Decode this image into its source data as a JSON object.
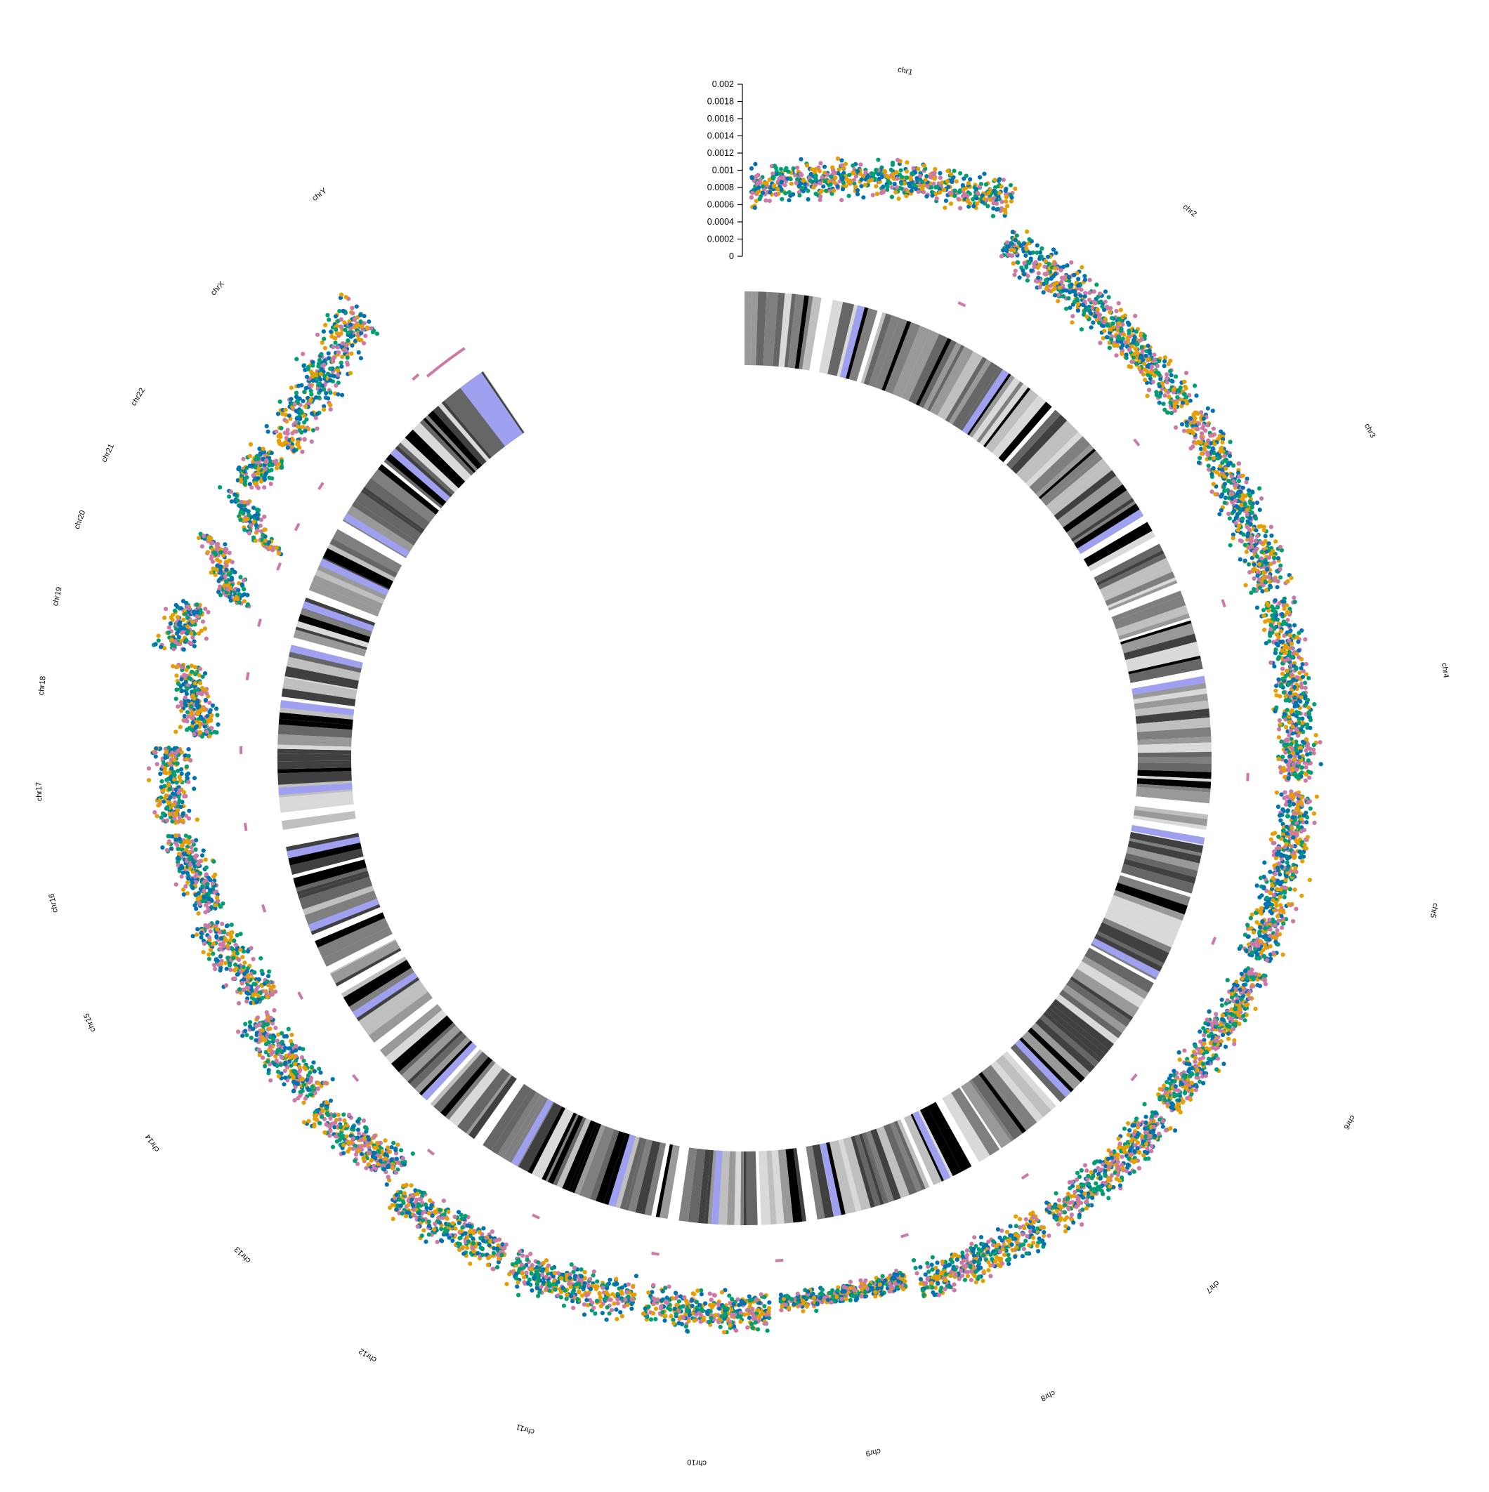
{
  "chart_data": {
    "type": "scatter",
    "layout": "circular",
    "title": "",
    "chromosomes": [
      {
        "name": "chr1",
        "length": 249.0
      },
      {
        "name": "chr2",
        "length": 242.0
      },
      {
        "name": "chr3",
        "length": 198.0
      },
      {
        "name": "chr4",
        "length": 190.0
      },
      {
        "name": "chr5",
        "length": 181.0
      },
      {
        "name": "chr6",
        "length": 171.0
      },
      {
        "name": "chr7",
        "length": 159.0
      },
      {
        "name": "chr8",
        "length": 145.0
      },
      {
        "name": "chr9",
        "length": 138.0
      },
      {
        "name": "chr10",
        "length": 134.0
      },
      {
        "name": "chr11",
        "length": 135.0
      },
      {
        "name": "chr12",
        "length": 133.0
      },
      {
        "name": "chr13",
        "length": 114.0
      },
      {
        "name": "chr14",
        "length": 107.0
      },
      {
        "name": "chr15",
        "length": 102.0
      },
      {
        "name": "chr16",
        "length": 90.0
      },
      {
        "name": "chr17",
        "length": 83.0
      },
      {
        "name": "chr18",
        "length": 80.0
      },
      {
        "name": "chr19",
        "length": 59.0
      },
      {
        "name": "chr20",
        "length": 64.0
      },
      {
        "name": "chr21",
        "length": 47.0
      },
      {
        "name": "chr22",
        "length": 51.0
      },
      {
        "name": "chrX",
        "length": 156.0
      },
      {
        "name": "chrY",
        "length": 57.0
      }
    ],
    "y_axis": {
      "range": [
        0,
        0.002
      ],
      "ticks": [
        "0",
        "0.0002",
        "0.0004",
        "0.0006",
        "0.0008",
        "0.001",
        "0.0012",
        "0.0014",
        "0.0016",
        "0.0018",
        "0.002"
      ]
    },
    "series_colors": [
      "#E69F00",
      "#0072B2",
      "#009E73",
      "#CC79A7"
    ],
    "centromere_color": "#A0A0F0",
    "band_colors": [
      "#000000",
      "#404040",
      "#666666",
      "#7f7f7f",
      "#999999",
      "#bfbfbf",
      "#d9d9d9",
      "#ffffff"
    ],
    "highlight_color": "#CC79A7",
    "profile": {
      "chr1": {
        "start": 0.0008,
        "end": 0.00135,
        "spread": 0.00018
      },
      "chr2": {
        "start": 0.00085,
        "end": 0.0007,
        "spread": 0.0002
      },
      "chr3": {
        "start": 0.0007,
        "end": 0.0006,
        "spread": 0.0002
      },
      "chr4": {
        "start": 0.0006,
        "end": 0.00058,
        "spread": 0.0002
      },
      "chr5": {
        "start": 0.0006,
        "end": 0.00055,
        "spread": 0.0002
      },
      "chr6": {
        "start": 0.00058,
        "end": 0.0005,
        "spread": 0.00018
      },
      "chr7": {
        "start": 0.00055,
        "end": 0.0006,
        "spread": 0.0002
      },
      "chr8": {
        "start": 0.0006,
        "end": 0.0006,
        "spread": 0.0002
      },
      "chr9": {
        "start": 0.0005,
        "end": 0.0005,
        "spread": 0.0001
      },
      "chr10": {
        "start": 0.0006,
        "end": 0.00062,
        "spread": 0.0002
      },
      "chr11": {
        "start": 0.0006,
        "end": 0.00065,
        "spread": 0.0002
      },
      "chr12": {
        "start": 0.0006,
        "end": 0.00065,
        "spread": 0.0002
      },
      "chr13": {
        "start": 0.0004,
        "end": 0.0006,
        "spread": 0.0002
      },
      "chr14": {
        "start": 0.0005,
        "end": 0.0006,
        "spread": 0.0002
      },
      "chr15": {
        "start": 0.0004,
        "end": 0.0007,
        "spread": 0.0002
      },
      "chr16": {
        "start": 0.0006,
        "end": 0.0008,
        "spread": 0.0002
      },
      "chr17": {
        "start": 0.0008,
        "end": 0.00085,
        "spread": 0.0002
      },
      "chr18": {
        "start": 0.0005,
        "end": 0.0007,
        "spread": 0.0002
      },
      "chr19": {
        "start": 0.0009,
        "end": 0.0008,
        "spread": 0.0002
      },
      "chr20": {
        "start": 0.0003,
        "end": 0.0009,
        "spread": 0.0002
      },
      "chr21": {
        "start": 0.0002,
        "end": 0.0008,
        "spread": 0.0002
      },
      "chr22": {
        "start": 0.0008,
        "end": 0.0007,
        "spread": 0.0002
      },
      "chrX": {
        "start": 0.0006,
        "end": 0.001,
        "spread": 0.00025
      },
      "chrY": {
        "start": 0.0,
        "end": 0.0,
        "spread": 0.0
      }
    }
  }
}
